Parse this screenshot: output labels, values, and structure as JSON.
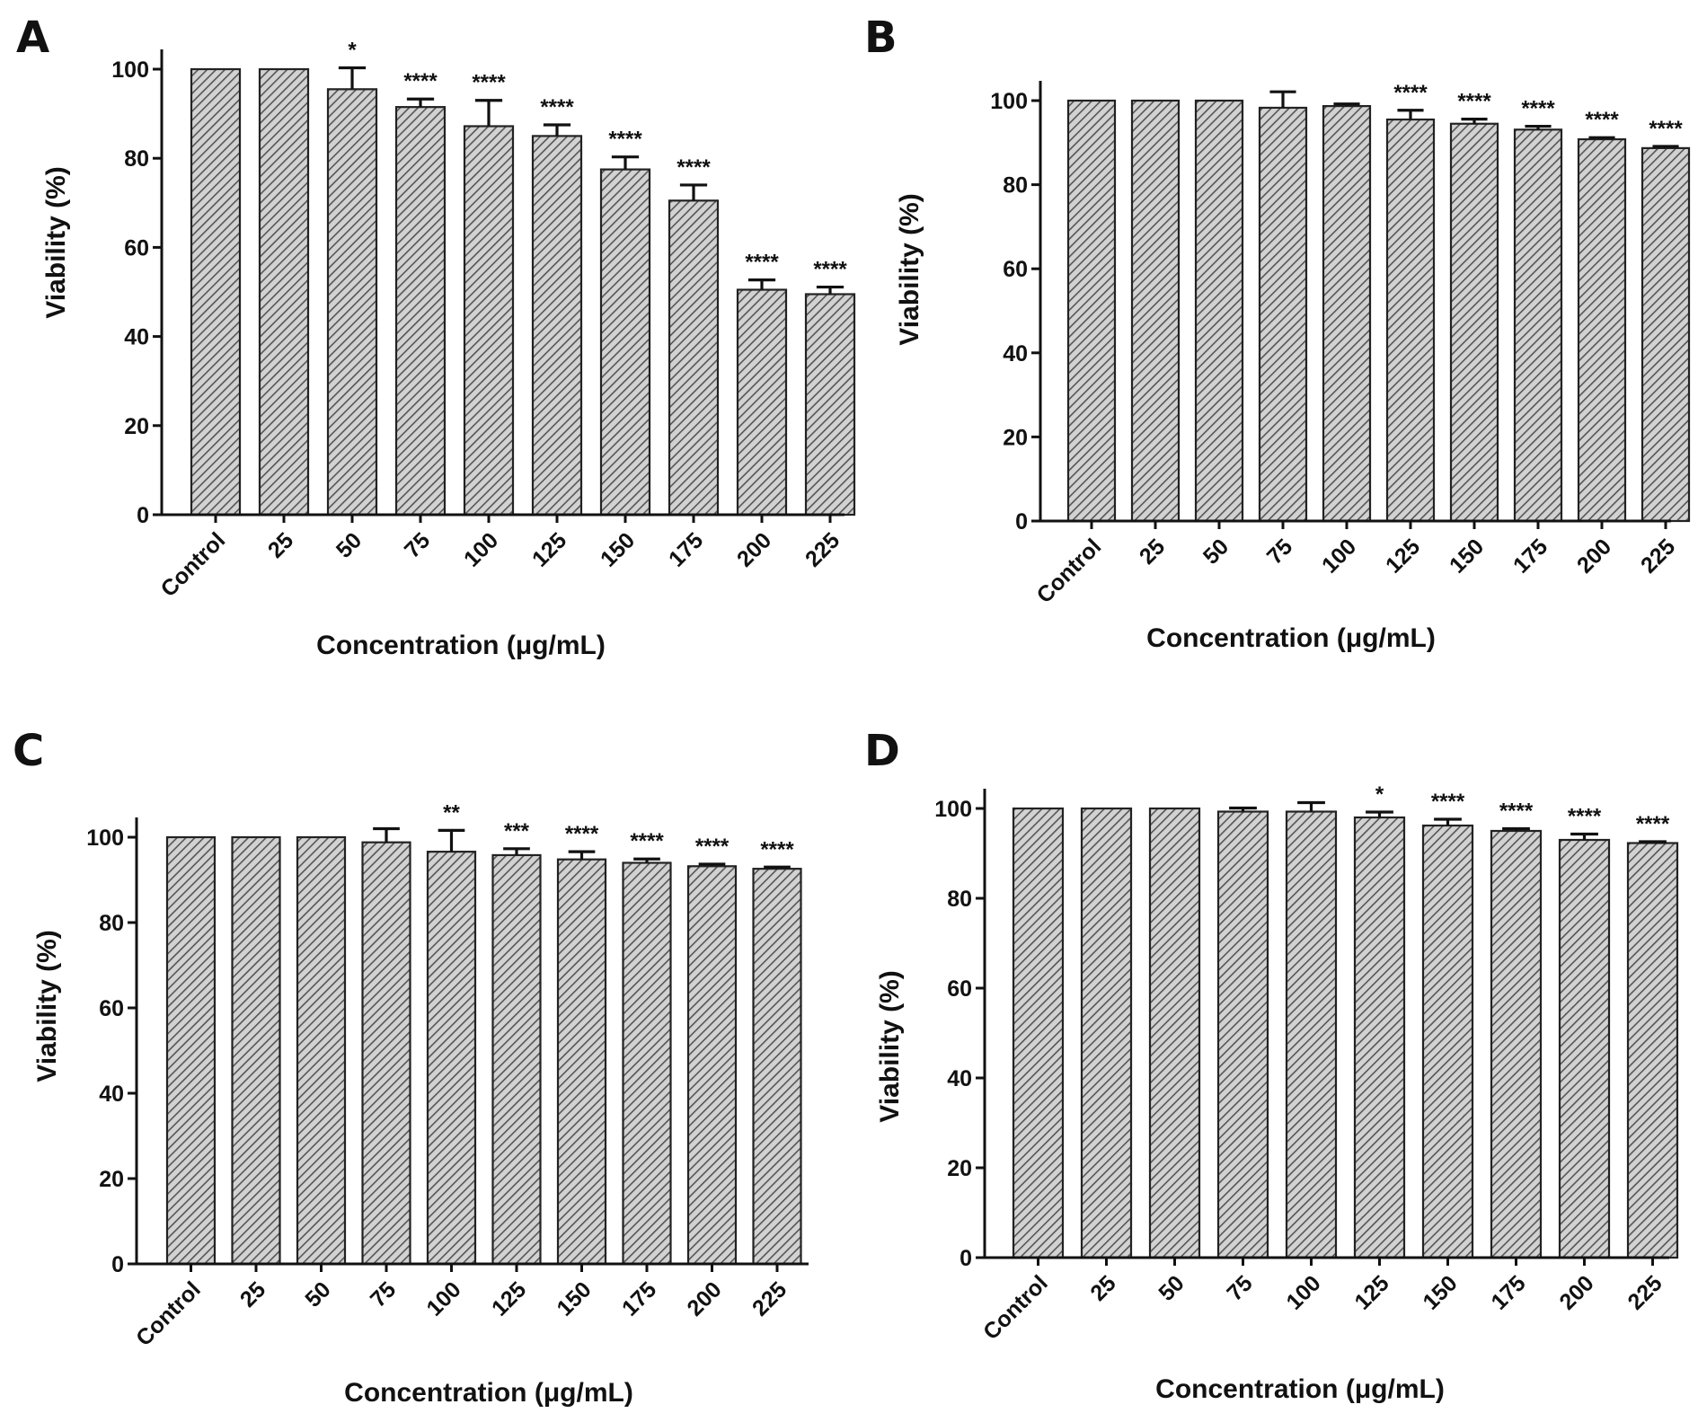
{
  "chart_data": [
    {
      "type": "bar",
      "panel": "A",
      "categories": [
        "Control",
        "25",
        "50",
        "75",
        "100",
        "125",
        "150",
        "175",
        "200",
        "225"
      ],
      "values": [
        100,
        100,
        95.5,
        91.5,
        87.2,
        85,
        77.5,
        70.5,
        50.5,
        49.5
      ],
      "errors": [
        0,
        0,
        4.8,
        1.8,
        5.8,
        2.5,
        2.8,
        3.5,
        2.2,
        1.6
      ],
      "significance": [
        "",
        "",
        "*",
        "****",
        "****",
        "****",
        "****",
        "****",
        "****",
        "****"
      ],
      "xlabel": "Concentration (μg/mL)",
      "ylabel": "Viability (%)",
      "ylim": [
        0,
        100
      ],
      "yticks": [
        0,
        20,
        40,
        60,
        80,
        100
      ]
    },
    {
      "type": "bar",
      "panel": "B",
      "categories": [
        "Control",
        "25",
        "50",
        "75",
        "100",
        "125",
        "150",
        "175",
        "200",
        "225"
      ],
      "values": [
        100,
        100,
        100,
        98.3,
        98.7,
        95.5,
        94.5,
        93.1,
        90.8,
        88.7
      ],
      "errors": [
        0,
        0,
        0,
        3.8,
        0.5,
        2.2,
        1.1,
        0.8,
        0.4,
        0.4
      ],
      "significance": [
        "",
        "",
        "",
        "",
        "",
        "****",
        "****",
        "****",
        "****",
        "****"
      ],
      "xlabel": "Concentration (μg/mL)",
      "ylabel": "Viability (%)",
      "ylim": [
        0,
        100
      ],
      "yticks": [
        0,
        20,
        40,
        60,
        80,
        100
      ]
    },
    {
      "type": "bar",
      "panel": "C",
      "categories": [
        "Control",
        "25",
        "50",
        "75",
        "100",
        "125",
        "150",
        "175",
        "200",
        "225"
      ],
      "values": [
        100,
        100,
        100,
        98.8,
        96.6,
        95.8,
        94.8,
        94,
        93.2,
        92.6
      ],
      "errors": [
        0,
        0,
        0,
        3.2,
        5,
        1.5,
        1.8,
        0.9,
        0.5,
        0.4
      ],
      "significance": [
        "",
        "",
        "",
        "",
        "**",
        "***",
        "****",
        "****",
        "****",
        "****"
      ],
      "xlabel": "Concentration (μg/mL)",
      "ylabel": "Viability (%)",
      "ylim": [
        0,
        100
      ],
      "yticks": [
        0,
        20,
        40,
        60,
        80,
        100
      ]
    },
    {
      "type": "bar",
      "panel": "D",
      "categories": [
        "Control",
        "25",
        "50",
        "75",
        "100",
        "125",
        "150",
        "175",
        "200",
        "225"
      ],
      "values": [
        100,
        100,
        100,
        99.3,
        99.3,
        98,
        96.2,
        95,
        93,
        92.3
      ],
      "errors": [
        0,
        0,
        0,
        0.8,
        2,
        1.2,
        1.4,
        0.5,
        1.3,
        0.3
      ],
      "significance": [
        "",
        "",
        "",
        "",
        "",
        "*",
        "****",
        "****",
        "****",
        "****"
      ],
      "xlabel": "Concentration (μg/mL)",
      "ylabel": "Viability (%)",
      "ylim": [
        0,
        100
      ],
      "yticks": [
        0,
        20,
        40,
        60,
        80,
        100
      ]
    }
  ]
}
